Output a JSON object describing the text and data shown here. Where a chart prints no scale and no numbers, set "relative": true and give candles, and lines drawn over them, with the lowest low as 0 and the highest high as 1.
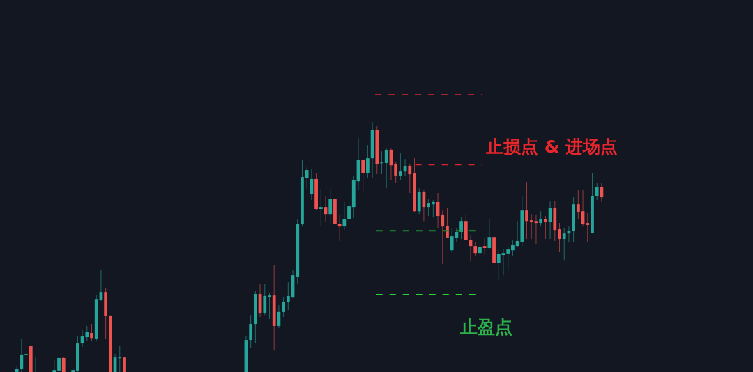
{
  "chart_data": {
    "type": "candlestick",
    "relative": true,
    "categories": [
      null,
      null,
      null,
      null,
      null,
      null,
      null,
      null,
      null,
      null,
      null,
      null,
      null,
      null,
      null,
      null,
      null,
      null,
      null,
      null,
      null,
      null,
      null,
      null,
      null,
      null,
      null,
      null,
      null,
      null,
      null,
      null,
      null,
      null,
      null,
      null,
      null,
      null,
      null,
      null,
      null,
      null,
      null,
      null,
      null,
      null,
      null,
      null,
      null,
      null,
      null,
      null,
      null,
      null,
      null,
      null,
      null,
      null,
      null,
      null,
      null,
      null,
      null,
      null,
      null,
      null,
      null,
      null,
      null,
      null,
      null,
      null,
      null,
      null,
      null,
      null,
      null,
      null,
      null,
      null,
      null,
      null,
      null,
      null,
      null,
      null,
      null,
      null,
      null,
      null,
      null,
      null,
      null,
      null,
      null,
      null,
      null,
      null,
      null,
      null,
      null,
      null,
      null,
      null,
      null,
      null,
      null,
      null,
      null,
      null,
      null,
      null,
      null,
      null,
      null,
      null,
      null,
      null,
      null,
      null,
      null,
      null,
      null,
      null,
      null,
      null
    ],
    "ohlc": [
      [
        0,
        0.022,
        0,
        0.014
      ],
      [
        0.014,
        0.134,
        0,
        0.07
      ],
      [
        0.067,
        0.103,
        0.042,
        0.072
      ],
      [
        0.103,
        0.106,
        0,
        0
      ],
      [
        0,
        0.061,
        0,
        0
      ],
      null,
      null,
      null,
      [
        0,
        0.047,
        0,
        0.008
      ],
      [
        0.006,
        0.061,
        0,
        0.056
      ],
      [
        0.056,
        0.061,
        0,
        0
      ],
      null,
      [
        0,
        0.019,
        0,
        0.008
      ],
      [
        0.006,
        0.145,
        0,
        0.114
      ],
      [
        0.114,
        0.17,
        0.1,
        0.142
      ],
      [
        0.139,
        0.184,
        0.123,
        0.159
      ],
      [
        0.156,
        0.192,
        0.123,
        0.136
      ],
      [
        0.134,
        0.309,
        0.123,
        0.292
      ],
      [
        0.29,
        0.409,
        0.284,
        0.32
      ],
      [
        0.32,
        0.337,
        0.131,
        0.223
      ],
      [
        0.223,
        0.228,
        0,
        0
      ],
      [
        0,
        0.072,
        0,
        0.058
      ],
      [
        0.056,
        0.106,
        0,
        0.058
      ],
      [
        0.058,
        0.061,
        0,
        0
      ],
      null,
      null,
      null,
      null,
      null,
      null,
      null,
      null,
      null,
      null,
      null,
      null,
      null,
      null,
      null,
      null,
      null,
      null,
      null,
      null,
      null,
      null,
      null,
      null,
      null,
      [
        0,
        0.145,
        0,
        0.128
      ],
      [
        0.128,
        0.228,
        0.095,
        0.192
      ],
      [
        0.192,
        0.323,
        0.114,
        0.312
      ],
      [
        0.312,
        0.351,
        0.22,
        0.237
      ],
      [
        0.237,
        0.351,
        0.228,
        0.304
      ],
      [
        0.301,
        0.318,
        0.212,
        0.306
      ],
      [
        0.306,
        0.429,
        0.086,
        0.184
      ],
      [
        0.184,
        0.267,
        0.175,
        0.24
      ],
      [
        0.24,
        0.298,
        0.22,
        0.281
      ],
      [
        0.279,
        0.359,
        0.248,
        0.304
      ],
      [
        0.298,
        0.407,
        0.295,
        0.387
      ],
      [
        0.382,
        0.61,
        0.354,
        0.591
      ],
      [
        0.591,
        0.847,
        0.582,
        0.78
      ],
      [
        0.777,
        0.819,
        0.73,
        0.808
      ],
      [
        0.713,
        0.811,
        0.688,
        0.772
      ],
      [
        0.772,
        0.794,
        0.649,
        0.652
      ],
      [
        0.652,
        0.73,
        0.582,
        0.66
      ],
      [
        0.66,
        0.702,
        0.602,
        0.632
      ],
      [
        0.632,
        0.73,
        0.591,
        0.691
      ],
      [
        0.691,
        0.699,
        0.574,
        0.591
      ],
      [
        0.593,
        0.63,
        0.524,
        0.582
      ],
      [
        0.582,
        0.68,
        0.568,
        0.613
      ],
      [
        0.613,
        0.713,
        0.602,
        0.663
      ],
      [
        0.66,
        0.786,
        0.616,
        0.769
      ],
      [
        0.763,
        0.936,
        0.727,
        0.847
      ],
      [
        0.847,
        0.852,
        0.716,
        0.797
      ],
      [
        0.797,
        0.908,
        0.777,
        0.855
      ],
      [
        0.855,
        1,
        0.777,
        0.967
      ],
      [
        0.967,
        0.983,
        0.791,
        0.833
      ],
      [
        0.836,
        0.883,
        0.791,
        0.838
      ],
      [
        0.836,
        0.894,
        0.735,
        0.889
      ],
      [
        0.889,
        0.894,
        0.769,
        0.827
      ],
      [
        0.833,
        0.841,
        0.758,
        0.786
      ],
      [
        0.786,
        0.875,
        0.769,
        0.802
      ],
      [
        0.802,
        0.852,
        0.783,
        0.822
      ],
      [
        0.822,
        0.833,
        0.716,
        0.791
      ],
      [
        0.794,
        0.855,
        0.638,
        0.643
      ],
      [
        0.643,
        0.735,
        0.632,
        0.719
      ],
      [
        0.719,
        0.727,
        0.604,
        0.66
      ],
      [
        0.66,
        0.691,
        0.624,
        0.674
      ],
      [
        0.671,
        0.688,
        0.618,
        0.68
      ],
      [
        0.68,
        0.716,
        0.577,
        0.624
      ],
      [
        0.63,
        0.646,
        0.432,
        0.582
      ],
      [
        0.585,
        0.657,
        0.535,
        0.538
      ],
      [
        0.487,
        0.577,
        0.476,
        0.543
      ],
      [
        0.538,
        0.577,
        0.521,
        0.56
      ],
      [
        0.56,
        0.618,
        0.532,
        0.604
      ],
      [
        0.604,
        0.632,
        0.526,
        0.529
      ],
      [
        0.529,
        0.546,
        0.446,
        0.504
      ],
      [
        0.504,
        0.521,
        0.465,
        0.476
      ],
      [
        0.476,
        0.513,
        0.465,
        0.501
      ],
      [
        0.504,
        0.535,
        0.471,
        0.496
      ],
      [
        0.496,
        0.61,
        0.493,
        0.54
      ],
      [
        0.54,
        0.549,
        0.409,
        0.437
      ],
      [
        0.435,
        0.493,
        0.368,
        0.471
      ],
      [
        0.468,
        0.493,
        0.387,
        0.476
      ],
      [
        0.474,
        0.504,
        0.409,
        0.49
      ],
      [
        0.487,
        0.526,
        0.462,
        0.507
      ],
      [
        0.504,
        0.604,
        0.499,
        0.524
      ],
      [
        0.521,
        0.705,
        0.504,
        0.646
      ],
      [
        0.646,
        0.76,
        0.532,
        0.604
      ],
      [
        0.607,
        0.632,
        0.532,
        0.602
      ],
      [
        0.604,
        0.63,
        0.513,
        0.596
      ],
      [
        0.596,
        0.643,
        0.582,
        0.613
      ],
      [
        0.613,
        0.624,
        0.532,
        0.599
      ],
      [
        0.599,
        0.682,
        0.532,
        0.655
      ],
      [
        0.655,
        0.685,
        0.524,
        0.568
      ],
      [
        0.571,
        0.596,
        0.479,
        0.532
      ],
      [
        0.532,
        0.574,
        0.448,
        0.554
      ],
      [
        0.554,
        0.582,
        0.518,
        0.565
      ],
      [
        0.563,
        0.699,
        0.518,
        0.671
      ],
      [
        0.671,
        0.727,
        0.613,
        0.641
      ],
      [
        0.643,
        0.727,
        0.582,
        0.593
      ],
      [
        0.596,
        0.635,
        0.518,
        0.588
      ],
      [
        0.557,
        0.797,
        0.554,
        0.705
      ],
      [
        0.705,
        0.755,
        0.688,
        0.741
      ],
      [
        0.741,
        0.758,
        0.68,
        0.699
      ]
    ],
    "ref_lines": [
      {
        "axis": "y",
        "value": 1.109,
        "color": "#a3262c",
        "line_style": "dashed"
      },
      {
        "axis": "y",
        "value": 0.83,
        "color": "#d7262c",
        "line_style": "dashed"
      },
      {
        "axis": "y",
        "value": 0.565,
        "color": "#1f8f2e",
        "line_style": "dashed"
      },
      {
        "axis": "y",
        "value": 0.309,
        "color": "#2fd33a",
        "line_style": "dashed"
      }
    ],
    "annotations": [
      "止损点 & 进场点",
      "止盈点"
    ]
  }
}
